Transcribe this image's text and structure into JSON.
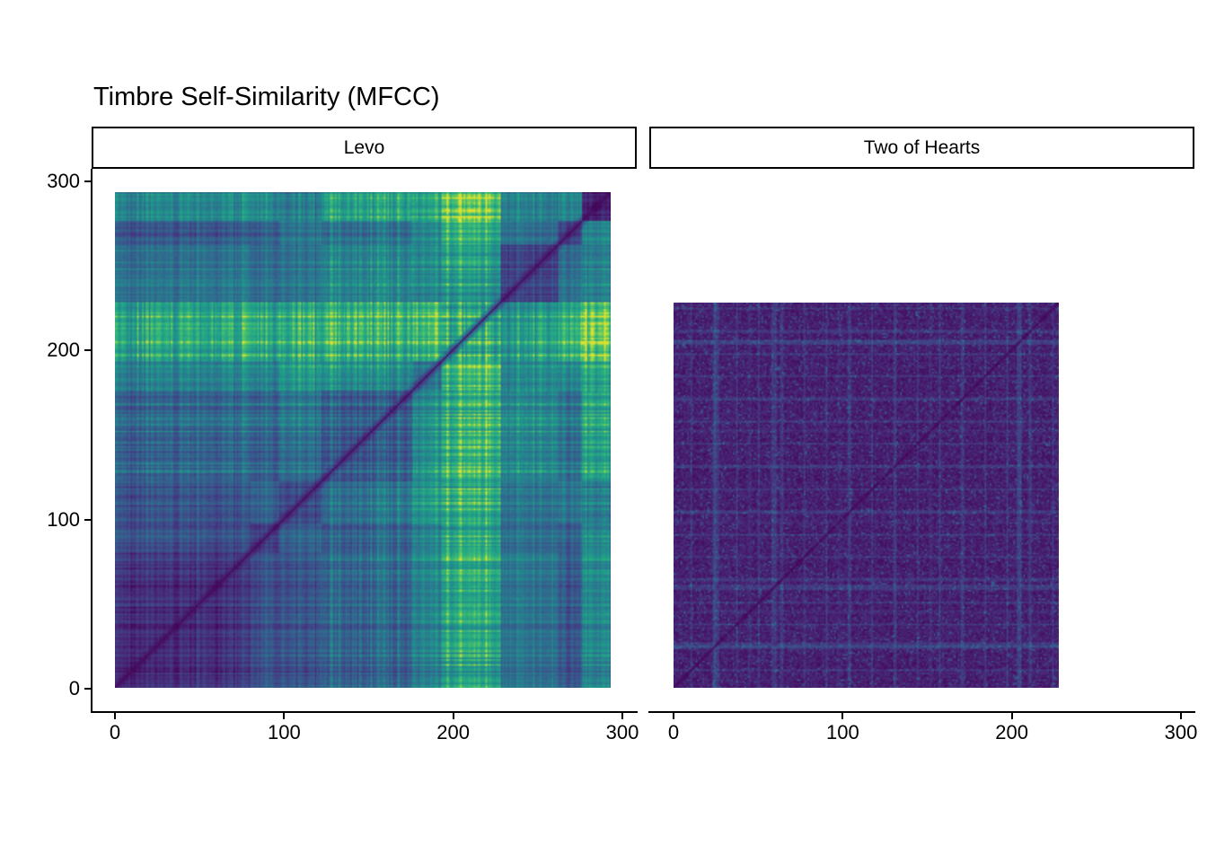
{
  "title": "Timbre Self-Similarity (MFCC)",
  "chart_data": {
    "type": "heatmap",
    "title": "Timbre Self-Similarity (MFCC)",
    "palette": "viridis",
    "palette_stops": [
      [
        68,
        1,
        84
      ],
      [
        72,
        40,
        120
      ],
      [
        62,
        74,
        137
      ],
      [
        49,
        104,
        142
      ],
      [
        38,
        130,
        142
      ],
      [
        31,
        158,
        137
      ],
      [
        53,
        183,
        121
      ],
      [
        109,
        205,
        89
      ],
      [
        253,
        231,
        37
      ]
    ],
    "x_ticks": [
      0,
      100,
      200,
      300
    ],
    "y_ticks": [
      0,
      100,
      200,
      300
    ],
    "axis_color": "#000000",
    "value_meaning": "pairwise MFCC distance per frame pair; diagonal is darkest (zero distance)",
    "facets": [
      {
        "label": "Levo",
        "n_frames": 293,
        "style": "segmented",
        "diagonal": "dark",
        "segments": [
          {
            "from": 0,
            "to": 80,
            "salience": 0.06
          },
          {
            "from": 80,
            "to": 97,
            "salience": 0.1
          },
          {
            "from": 97,
            "to": 122,
            "salience": 0.15
          },
          {
            "from": 122,
            "to": 176,
            "salience": 0.16,
            "scatter": 0.34,
            "scatter_p": 0.2
          },
          {
            "from": 176,
            "to": 193,
            "salience": 0.3
          },
          {
            "from": 193,
            "to": 228,
            "salience": 0.46,
            "peaks": [
              196,
              204,
              212,
              219
            ],
            "peak_salience": 0.62
          },
          {
            "from": 228,
            "to": 262,
            "salience": 0.12
          },
          {
            "from": 262,
            "to": 276,
            "salience": 0.08
          },
          {
            "from": 276,
            "to": 293,
            "salience": 0.3,
            "self_dark": true
          }
        ],
        "pair_same_base": 0.09,
        "pair_diff_base": 0.16,
        "pair_diff_spread": 0.17,
        "stripe_amp": 0.14,
        "cell_noise": 0.05
      },
      {
        "label": "Two of Hearts",
        "n_frames": 228,
        "style": "fine",
        "diagonal": "dark",
        "base": 0.095,
        "noise": 0.11,
        "beat_period": 13.37,
        "beat_boost": 0.13,
        "bar_period": 53.5,
        "bar_boost": 0.05,
        "speckle_threshold": 0.935,
        "speckle_boost": 0.17,
        "accent_rows": [
          25,
          59,
          204
        ],
        "accent_boost": 0.09
      }
    ]
  }
}
